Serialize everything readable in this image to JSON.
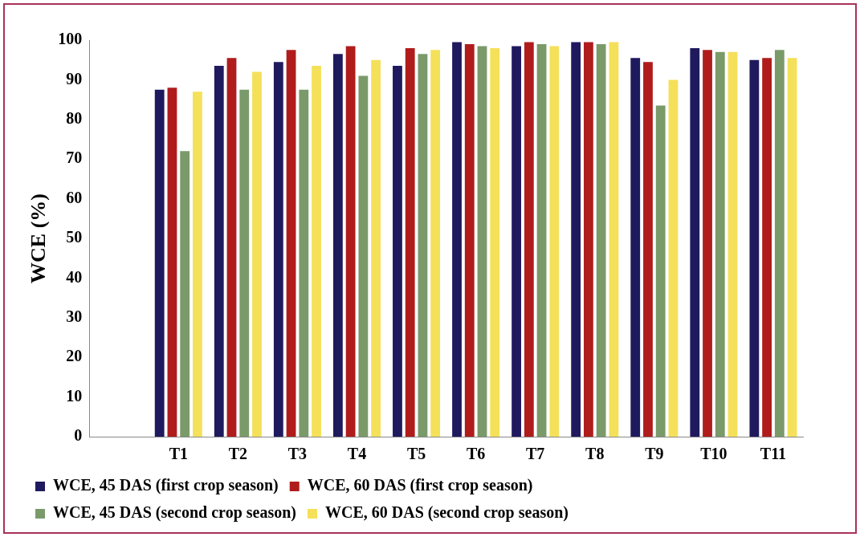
{
  "chart_data": {
    "type": "bar",
    "ylabel": "WCE (%)",
    "categories": [
      null,
      "T1",
      "T2",
      "T3",
      "T4",
      "T5",
      "T6",
      "T7",
      "T8",
      "T9",
      "T10",
      "T11"
    ],
    "series": [
      {
        "name": "WCE, 45 DAS (first crop season)",
        "color": "#1f1a5e",
        "values": [
          null,
          87.5,
          93.5,
          94.5,
          96.5,
          93.5,
          99.5,
          98.5,
          99.5,
          95.5,
          98,
          95
        ]
      },
      {
        "name": "WCE, 60 DAS (first crop season)",
        "color": "#b01c1c",
        "values": [
          null,
          88,
          95.5,
          97.5,
          98.5,
          98,
          99,
          99.5,
          99.5,
          94.5,
          97.5,
          95.5
        ]
      },
      {
        "name": "WCE, 45 DAS (second crop season)",
        "color": "#7a9a6a",
        "values": [
          null,
          72,
          87.5,
          87.5,
          91,
          96.5,
          98.5,
          99,
          99,
          83.5,
          97,
          97.5
        ]
      },
      {
        "name": "WCE, 60 DAS (second crop season)",
        "color": "#f5e05a",
        "values": [
          null,
          87,
          92,
          93.5,
          95,
          97.5,
          98,
          98.5,
          99.5,
          90,
          97,
          95.5
        ]
      }
    ],
    "ylim": [
      0,
      100
    ],
    "yticks": [
      0,
      10,
      20,
      30,
      40,
      50,
      60,
      70,
      80,
      90,
      100
    ],
    "grid": false,
    "legend": "bottom"
  }
}
